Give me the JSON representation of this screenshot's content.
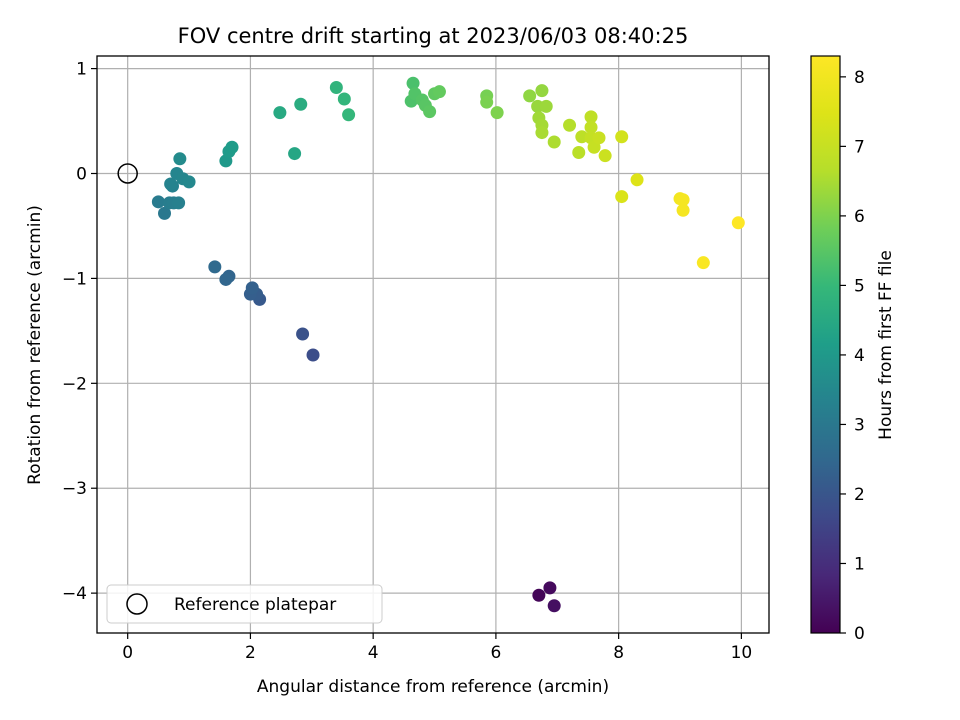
{
  "chart_data": {
    "type": "scatter",
    "title": "FOV centre drift starting at 2023/06/03 08:40:25",
    "xlabel": "Angular distance from reference (arcmin)",
    "ylabel": "Rotation from reference (arcmin)",
    "xlim": [
      -0.5,
      10.45
    ],
    "ylim": [
      -4.38,
      1.12
    ],
    "xticks": [
      0,
      2,
      4,
      6,
      8,
      10
    ],
    "xtick_labels": [
      "0",
      "2",
      "4",
      "6",
      "8",
      "10"
    ],
    "yticks": [
      -4,
      -3,
      -2,
      -1,
      0,
      1
    ],
    "ytick_labels": [
      "−4",
      "−3",
      "−2",
      "−1",
      "0",
      "1"
    ],
    "grid": true,
    "legend": {
      "position": "lower-left",
      "entries": [
        {
          "label": "Reference platepar",
          "marker": "open-circle"
        }
      ]
    },
    "reference_point": {
      "x": 0,
      "y": 0
    },
    "colorbar": {
      "label": "Hours from first FF file",
      "colormap": "viridis",
      "range": [
        0,
        8.3
      ],
      "ticks": [
        0,
        1,
        2,
        3,
        4,
        5,
        6,
        7,
        8
      ],
      "tick_labels": [
        "0",
        "1",
        "2",
        "3",
        "4",
        "5",
        "6",
        "7",
        "8"
      ]
    },
    "points": [
      {
        "x": 6.7,
        "y": -4.02,
        "c": 0.1
      },
      {
        "x": 6.88,
        "y": -3.95,
        "c": 0.2
      },
      {
        "x": 6.95,
        "y": -4.12,
        "c": 0.3
      },
      {
        "x": 3.02,
        "y": -1.73,
        "c": 1.8
      },
      {
        "x": 2.85,
        "y": -1.53,
        "c": 1.9
      },
      {
        "x": 2.15,
        "y": -1.2,
        "c": 2.1
      },
      {
        "x": 2.1,
        "y": -1.15,
        "c": 2.2
      },
      {
        "x": 2.0,
        "y": -1.15,
        "c": 2.25
      },
      {
        "x": 2.03,
        "y": -1.09,
        "c": 2.3
      },
      {
        "x": 1.65,
        "y": -0.98,
        "c": 2.4
      },
      {
        "x": 1.6,
        "y": -1.01,
        "c": 2.45
      },
      {
        "x": 1.42,
        "y": -0.89,
        "c": 2.55
      },
      {
        "x": 0.6,
        "y": -0.38,
        "c": 3.0
      },
      {
        "x": 0.5,
        "y": -0.27,
        "c": 3.1
      },
      {
        "x": 0.68,
        "y": -0.28,
        "c": 3.15
      },
      {
        "x": 0.75,
        "y": -0.28,
        "c": 3.2
      },
      {
        "x": 0.83,
        "y": -0.28,
        "c": 3.25
      },
      {
        "x": 0.73,
        "y": -0.12,
        "c": 3.3
      },
      {
        "x": 0.7,
        "y": -0.1,
        "c": 3.35
      },
      {
        "x": 0.8,
        "y": 0.0,
        "c": 3.4
      },
      {
        "x": 0.9,
        "y": -0.05,
        "c": 3.45
      },
      {
        "x": 1.0,
        "y": -0.08,
        "c": 3.5
      },
      {
        "x": 0.85,
        "y": 0.14,
        "c": 3.6
      },
      {
        "x": 1.6,
        "y": 0.12,
        "c": 4.0
      },
      {
        "x": 1.65,
        "y": 0.21,
        "c": 4.05
      },
      {
        "x": 1.7,
        "y": 0.25,
        "c": 4.1
      },
      {
        "x": 2.72,
        "y": 0.19,
        "c": 4.4
      },
      {
        "x": 2.48,
        "y": 0.58,
        "c": 4.5
      },
      {
        "x": 2.82,
        "y": 0.66,
        "c": 4.6
      },
      {
        "x": 3.4,
        "y": 0.82,
        "c": 4.85
      },
      {
        "x": 3.53,
        "y": 0.71,
        "c": 4.9
      },
      {
        "x": 3.6,
        "y": 0.56,
        "c": 4.95
      },
      {
        "x": 4.65,
        "y": 0.86,
        "c": 5.3
      },
      {
        "x": 4.62,
        "y": 0.69,
        "c": 5.35
      },
      {
        "x": 4.68,
        "y": 0.76,
        "c": 5.4
      },
      {
        "x": 4.8,
        "y": 0.7,
        "c": 5.45
      },
      {
        "x": 4.85,
        "y": 0.65,
        "c": 5.5
      },
      {
        "x": 4.92,
        "y": 0.59,
        "c": 5.55
      },
      {
        "x": 5.0,
        "y": 0.76,
        "c": 5.6
      },
      {
        "x": 5.08,
        "y": 0.78,
        "c": 5.65
      },
      {
        "x": 5.85,
        "y": 0.74,
        "c": 5.9
      },
      {
        "x": 5.85,
        "y": 0.68,
        "c": 5.95
      },
      {
        "x": 6.02,
        "y": 0.58,
        "c": 6.0
      },
      {
        "x": 6.55,
        "y": 0.74,
        "c": 6.2
      },
      {
        "x": 6.75,
        "y": 0.79,
        "c": 6.25
      },
      {
        "x": 6.68,
        "y": 0.64,
        "c": 6.3
      },
      {
        "x": 6.82,
        "y": 0.64,
        "c": 6.35
      },
      {
        "x": 6.7,
        "y": 0.53,
        "c": 6.4
      },
      {
        "x": 6.75,
        "y": 0.46,
        "c": 6.45
      },
      {
        "x": 6.75,
        "y": 0.39,
        "c": 6.5
      },
      {
        "x": 6.95,
        "y": 0.3,
        "c": 6.55
      },
      {
        "x": 7.2,
        "y": 0.46,
        "c": 6.65
      },
      {
        "x": 7.35,
        "y": 0.2,
        "c": 6.75
      },
      {
        "x": 7.4,
        "y": 0.35,
        "c": 6.8
      },
      {
        "x": 7.55,
        "y": 0.54,
        "c": 6.85
      },
      {
        "x": 7.55,
        "y": 0.44,
        "c": 6.9
      },
      {
        "x": 7.55,
        "y": 0.34,
        "c": 6.95
      },
      {
        "x": 7.6,
        "y": 0.25,
        "c": 7.0
      },
      {
        "x": 7.68,
        "y": 0.34,
        "c": 7.05
      },
      {
        "x": 7.78,
        "y": 0.17,
        "c": 7.1
      },
      {
        "x": 8.05,
        "y": 0.35,
        "c": 7.25
      },
      {
        "x": 8.05,
        "y": -0.22,
        "c": 7.4
      },
      {
        "x": 8.3,
        "y": -0.06,
        "c": 7.5
      },
      {
        "x": 9.0,
        "y": -0.24,
        "c": 8.05
      },
      {
        "x": 9.05,
        "y": -0.25,
        "c": 8.1
      },
      {
        "x": 9.05,
        "y": -0.35,
        "c": 8.1
      },
      {
        "x": 9.38,
        "y": -0.85,
        "c": 8.2
      },
      {
        "x": 9.95,
        "y": -0.47,
        "c": 8.3
      }
    ]
  }
}
